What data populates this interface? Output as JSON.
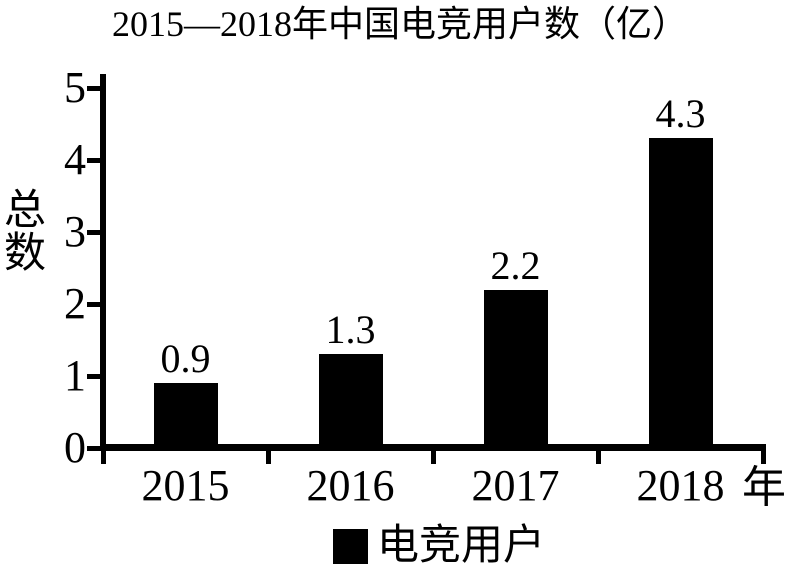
{
  "chart_data": {
    "type": "bar",
    "title": "2015—2018年中国电竞用户数（亿）",
    "ylabel": "总数",
    "xlabel": "年",
    "categories": [
      "2015",
      "2016",
      "2017",
      "2018"
    ],
    "values": [
      0.9,
      1.3,
      2.2,
      4.3
    ],
    "value_labels": [
      "0.9",
      "1.3",
      "2.2",
      "4.3"
    ],
    "yticks": [
      0,
      1,
      2,
      3,
      4,
      5
    ],
    "ylim": [
      0,
      5
    ],
    "legend": [
      "电竞用户"
    ],
    "legend_position": "bottom",
    "grid": false,
    "bar_color": "#000000",
    "axis_color": "#000000",
    "background_color": "#ffffff"
  }
}
